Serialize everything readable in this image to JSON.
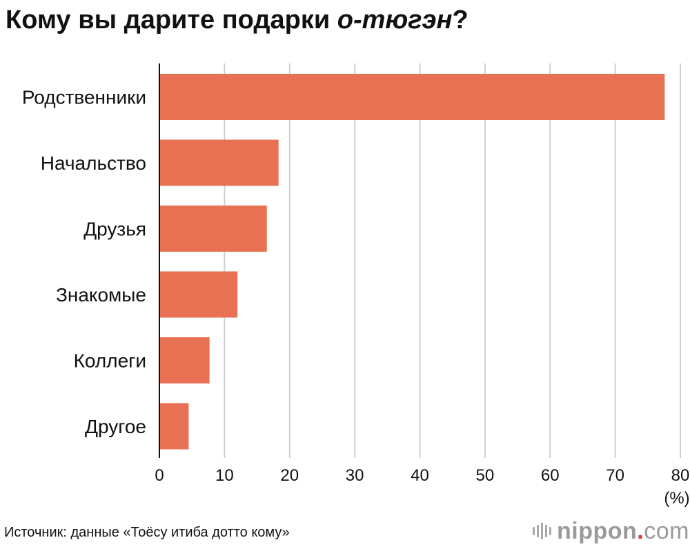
{
  "title": {
    "main": "Кому вы дарите подарки ",
    "emphasis": "о-тюгэн",
    "suffix": "?"
  },
  "chart_data": {
    "type": "bar",
    "orientation": "horizontal",
    "categories": [
      "Родственники",
      "Начальство",
      "Друзья",
      "Знакомые",
      "Коллеги",
      "Другое"
    ],
    "values": [
      77.6,
      18.3,
      16.5,
      12.0,
      7.7,
      4.5
    ],
    "xlim": [
      0,
      80
    ],
    "xticks": [
      "0",
      "10",
      "20",
      "30",
      "40",
      "50",
      "60",
      "70",
      "80"
    ],
    "unit_label": "(%)",
    "grid": true,
    "bar_color": "#e87153"
  },
  "source": "Источник: данные «Тоёсу итиба дотто кому»",
  "brand": {
    "name": "nippon",
    "dot": ".",
    "tld": "com"
  }
}
